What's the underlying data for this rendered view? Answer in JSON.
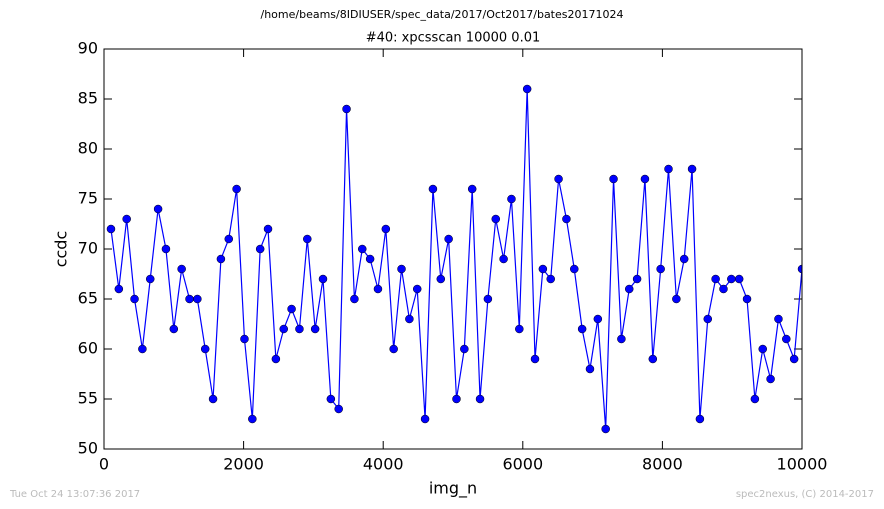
{
  "chart_data": {
    "type": "line",
    "suptitle": "/home/beams/8IDIUSER/spec_data/2017/Oct2017/bates20171024",
    "title": "#40: xpcsscan 10000 0.01",
    "xlabel": "img_n",
    "ylabel": "ccdc",
    "footer_left": "Tue Oct 24 13:07:36 2017",
    "footer_right": "spec2nexus, (C) 2014-2017",
    "x": [
      100,
      212.5,
      325,
      437.5,
      550,
      662.5,
      775,
      887.5,
      1000,
      1112.5,
      1225,
      1337.5,
      1450,
      1562.5,
      1675,
      1787.5,
      1900,
      2012.5,
      2125,
      2237.5,
      2350,
      2462.5,
      2575,
      2687.5,
      2800,
      2912.5,
      3025,
      3137.5,
      3250,
      3362.5,
      3475,
      3587.5,
      3700,
      3812.5,
      3925,
      4037.5,
      4150,
      4262.5,
      4375,
      4487.5,
      4600,
      4712.5,
      4825,
      4937.5,
      5050,
      5162.5,
      5275,
      5387.5,
      5500,
      5612.5,
      5725,
      5837.5,
      5950,
      6062.5,
      6175,
      6287.5,
      6400,
      6512.5,
      6625,
      6737.5,
      6850,
      6962.5,
      7075,
      7187.5,
      7300,
      7412.5,
      7525,
      7637.5,
      7750,
      7862.5,
      7975,
      8087.5,
      8200,
      8312.5,
      8425,
      8537.5,
      8650,
      8762.5,
      8875,
      8987.5,
      9100,
      9212.5,
      9325,
      9437.5,
      9550,
      9662.5,
      9775,
      9887.5,
      10000
    ],
    "series": [
      {
        "name": "ccdc",
        "color": "#0000ff",
        "values": [
          72,
          66,
          73,
          65,
          60,
          67,
          74,
          70,
          62,
          68,
          65,
          65,
          60,
          55,
          69,
          71,
          76,
          61,
          53,
          70,
          72,
          59,
          62,
          64,
          62,
          71,
          62,
          67,
          55,
          54,
          84,
          65,
          70,
          69,
          66,
          72,
          60,
          68,
          63,
          66,
          53,
          76,
          67,
          71,
          55,
          60,
          76,
          55,
          65,
          73,
          69,
          75,
          62,
          86,
          59,
          68,
          67,
          77,
          73,
          68,
          62,
          58,
          63,
          52,
          77,
          61,
          66,
          67,
          77,
          59,
          68,
          78,
          65,
          69,
          78,
          53,
          63,
          67,
          66,
          67,
          67,
          65,
          55,
          60,
          57,
          63,
          61,
          59,
          68
        ]
      }
    ],
    "xlim": [
      0,
      10000
    ],
    "xticks": [
      0,
      2000,
      4000,
      6000,
      8000,
      10000
    ],
    "ylim": [
      50,
      90
    ],
    "yticks": [
      50,
      55,
      60,
      65,
      70,
      75,
      80,
      85,
      90
    ]
  }
}
